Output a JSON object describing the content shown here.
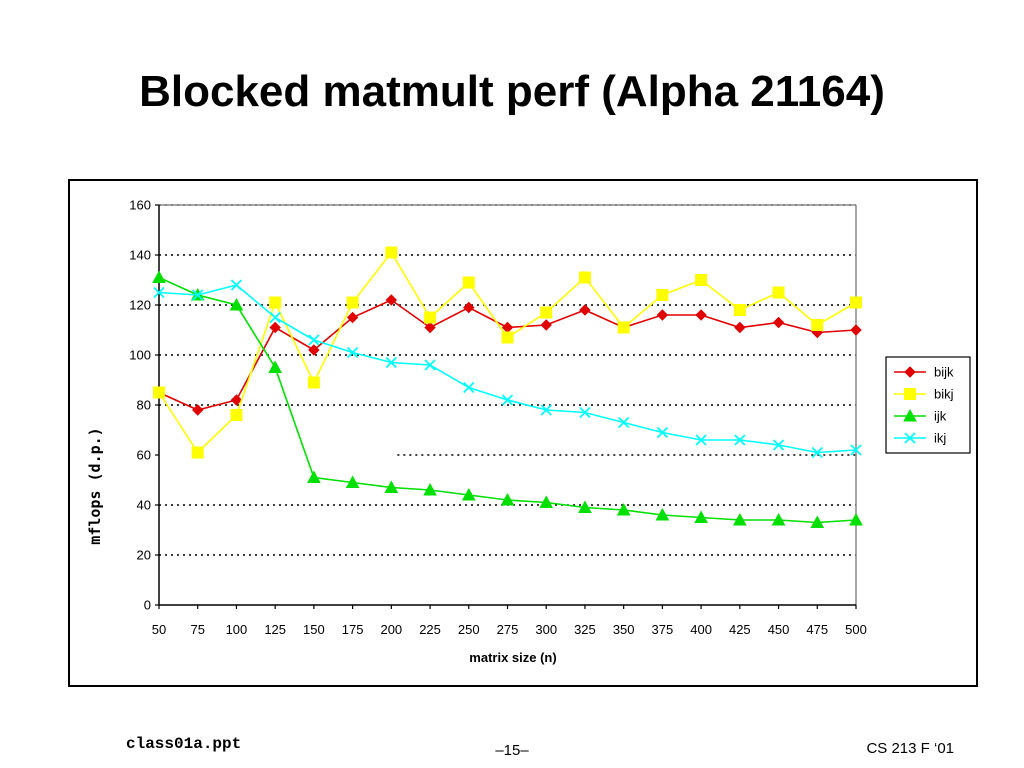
{
  "slide": {
    "title": "Blocked matmult perf (Alpha 21164)",
    "footer_left": "class01a.ppt",
    "footer_center": "–15–",
    "footer_right": "CS 213 F ‘01"
  },
  "chart_data": {
    "type": "line",
    "title": "",
    "xlabel": "matrix size (n)",
    "ylabel": "mflops (d.p.)",
    "ylim": [
      0,
      160
    ],
    "yticks": [
      0,
      20,
      40,
      60,
      80,
      100,
      120,
      140,
      160
    ],
    "categories": [
      "50",
      "75",
      "100",
      "125",
      "150",
      "175",
      "200",
      "225",
      "250",
      "275",
      "300",
      "325",
      "350",
      "375",
      "400",
      "425",
      "450",
      "475",
      "500"
    ],
    "legend_position": "right",
    "series": [
      {
        "name": "bijk",
        "color": "#e00000",
        "marker": "diamond",
        "values": [
          85,
          78,
          82,
          111,
          102,
          115,
          122,
          111,
          119,
          111,
          112,
          118,
          111,
          116,
          116,
          111,
          113,
          109,
          110
        ]
      },
      {
        "name": "bikj",
        "color": "#ffff00",
        "marker": "square",
        "values": [
          85,
          61,
          76,
          121,
          89,
          121,
          141,
          115,
          129,
          107,
          117,
          131,
          111,
          124,
          130,
          118,
          125,
          112,
          121
        ]
      },
      {
        "name": "ijk",
        "color": "#00e000",
        "marker": "triangle",
        "values": [
          131,
          124,
          120,
          95,
          51,
          49,
          47,
          46,
          44,
          42,
          41,
          39,
          38,
          36,
          35,
          34,
          34,
          33,
          34
        ]
      },
      {
        "name": "ikj",
        "color": "#00ffff",
        "marker": "x",
        "values": [
          125,
          124,
          128,
          115,
          106,
          101,
          97,
          96,
          87,
          82,
          78,
          77,
          73,
          69,
          66,
          66,
          64,
          61,
          62
        ]
      }
    ]
  }
}
